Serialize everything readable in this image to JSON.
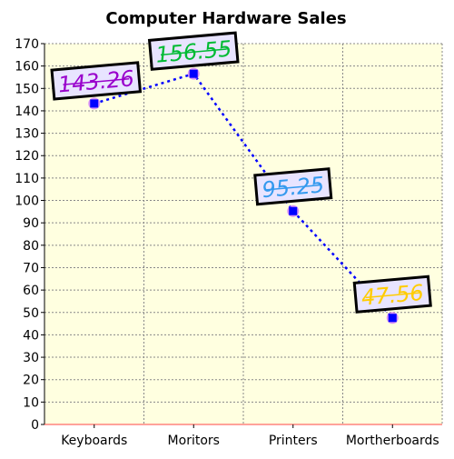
{
  "chart_data": {
    "type": "line",
    "title": "Computer Hardware Sales",
    "categories": [
      "Keyboards",
      "Moritors",
      "Printers",
      "Mortherboards"
    ],
    "values": [
      143.26,
      156.55,
      95.25,
      47.56
    ],
    "data_labels": [
      "143.26",
      "156.55",
      "95.25",
      "47.56"
    ],
    "label_colors": [
      "#9900cc",
      "#00bb33",
      "#3399ee",
      "#ffcc00"
    ],
    "ylim": [
      0,
      170
    ],
    "yticks": [
      "0",
      "10",
      "20",
      "30",
      "40",
      "50",
      "60",
      "70",
      "80",
      "90",
      "100",
      "110",
      "120",
      "130",
      "140",
      "150",
      "160",
      "170"
    ],
    "grid": true,
    "line_color": "#0000ff",
    "line_style": "dotted",
    "marker_color": "#0000ff",
    "marker_halo_color": "#cc66ff",
    "plot_background": "#ffffe0",
    "label_box_fill": "#e8e4ff",
    "label_box_border": "#000000"
  }
}
